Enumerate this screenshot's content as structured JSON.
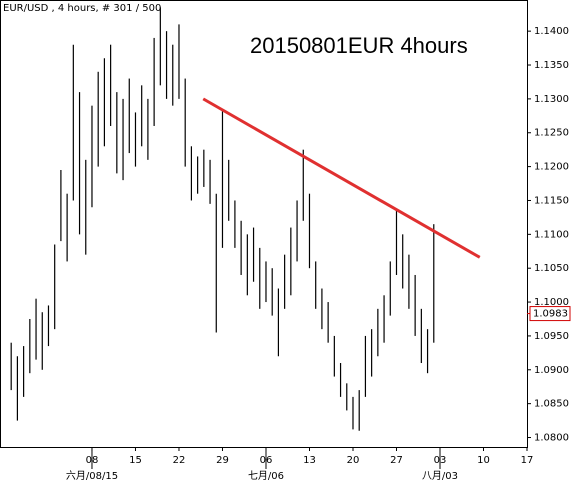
{
  "chart_data": {
    "type": "hilo",
    "header": "EUR/USD , 4 hours, # 301 / 500",
    "title": "20150801EUR 4hours",
    "color": "#000000",
    "xlim": [
      -7.8,
      77
    ],
    "ylim": [
      1.0786,
      1.1446
    ],
    "xticks": [
      {
        "value": 7,
        "label": "08"
      },
      {
        "value": 14,
        "label": "15"
      },
      {
        "value": 21,
        "label": "22"
      },
      {
        "value": 28,
        "label": "29"
      },
      {
        "value": 35,
        "label": "06"
      },
      {
        "value": 42,
        "label": "13"
      },
      {
        "value": 49,
        "label": "20"
      },
      {
        "value": 56,
        "label": "27"
      },
      {
        "value": 63,
        "label": "03"
      },
      {
        "value": 70,
        "label": "10"
      },
      {
        "value": 77,
        "label": "17"
      }
    ],
    "xticks_month": [
      {
        "value": 7,
        "label": "六月/08/15"
      },
      {
        "value": 35,
        "label": "七月/06"
      },
      {
        "value": 63,
        "label": "八月/03"
      }
    ],
    "yticks": [
      {
        "value": 1.08,
        "label": "1.0800"
      },
      {
        "value": 1.085,
        "label": "1.0850"
      },
      {
        "value": 1.09,
        "label": "1.0900"
      },
      {
        "value": 1.095,
        "label": "1.0950"
      },
      {
        "value": 1.1,
        "label": "1.1000"
      },
      {
        "value": 1.105,
        "label": "1.1050"
      },
      {
        "value": 1.11,
        "label": "1.1100"
      },
      {
        "value": 1.115,
        "label": "1.1150"
      },
      {
        "value": 1.12,
        "label": "1.1200"
      },
      {
        "value": 1.125,
        "label": "1.1250"
      },
      {
        "value": 1.13,
        "label": "1.1300"
      },
      {
        "value": 1.135,
        "label": "1.1350"
      },
      {
        "value": 1.14,
        "label": "1.1400"
      }
    ],
    "x": [
      -6,
      -5,
      -4,
      -3,
      -2,
      -1,
      0,
      1,
      2,
      3,
      4,
      5,
      6,
      7,
      8,
      9,
      10,
      11,
      12,
      13,
      14,
      15,
      16,
      17,
      18,
      19,
      20,
      21,
      22,
      23,
      24,
      25,
      26,
      27,
      28,
      29,
      30,
      31,
      32,
      33,
      34,
      35,
      36,
      37,
      38,
      39,
      40,
      41,
      42,
      43,
      44,
      45,
      46,
      47,
      48,
      49,
      50,
      51,
      52,
      53,
      54,
      55,
      56,
      57,
      58,
      59,
      60,
      61,
      62
    ],
    "high": [
      1.094,
      1.092,
      1.0935,
      1.0975,
      1.1005,
      1.0985,
      1.0995,
      1.1085,
      1.1195,
      1.116,
      1.138,
      1.131,
      1.121,
      1.129,
      1.134,
      1.136,
      1.138,
      1.131,
      1.13,
      1.133,
      1.128,
      1.132,
      1.13,
      1.139,
      1.1435,
      1.14,
      1.138,
      1.141,
      1.133,
      1.123,
      1.1215,
      1.1225,
      1.121,
      1.116,
      1.1285,
      1.121,
      1.115,
      1.112,
      1.11,
      1.111,
      1.108,
      1.106,
      1.105,
      1.102,
      1.107,
      1.111,
      1.115,
      1.1225,
      1.116,
      1.106,
      1.102,
      1.1,
      1.095,
      1.091,
      1.088,
      1.086,
      1.087,
      1.095,
      1.096,
      1.099,
      1.101,
      1.106,
      1.1135,
      1.11,
      1.107,
      1.104,
      1.099,
      1.096,
      1.1115
    ],
    "low": [
      1.087,
      1.0825,
      1.086,
      1.0895,
      1.0915,
      1.09,
      1.0935,
      1.096,
      1.109,
      1.106,
      1.115,
      1.11,
      1.107,
      1.114,
      1.12,
      1.123,
      1.126,
      1.119,
      1.118,
      1.122,
      1.12,
      1.123,
      1.121,
      1.126,
      1.132,
      1.13,
      1.129,
      1.13,
      1.12,
      1.115,
      1.116,
      1.117,
      1.1145,
      1.0955,
      1.108,
      1.112,
      1.108,
      1.104,
      1.101,
      1.103,
      1.099,
      1.1,
      1.098,
      1.092,
      1.099,
      1.101,
      1.106,
      1.112,
      1.105,
      1.099,
      1.096,
      1.094,
      1.089,
      1.086,
      1.084,
      1.0812,
      1.081,
      1.086,
      1.089,
      1.092,
      1.094,
      1.098,
      1.104,
      1.102,
      1.099,
      1.095,
      1.091,
      1.0895,
      1.094
    ],
    "last_price": 1.0983,
    "last_color": "#d00000",
    "trendline": {
      "x": [
        24.9,
        69.4
      ],
      "values": [
        1.13,
        1.1066
      ],
      "color": "#e03030"
    }
  }
}
